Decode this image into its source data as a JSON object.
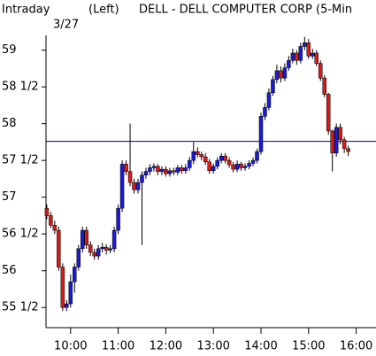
{
  "chart_data": {
    "type": "candlestick",
    "title": "DELL - DELL COMPUTER CORP  (5-Min",
    "period": "Intraday",
    "axis_side": "(Left)",
    "date": "3/27",
    "up_color": "#1a1ad8",
    "down_color": "#d81a1a",
    "reference_color": "#000080",
    "reference_line": 57.76,
    "ylim": [
      55.25,
      59.2
    ],
    "yticks": [
      {
        "value": 55.5,
        "label": "55 1/2"
      },
      56,
      {
        "value": 56.5,
        "label": "56 1/2"
      },
      57,
      {
        "value": 57.5,
        "label": "57 1/2"
      },
      58,
      {
        "value": 58.5,
        "label": "58 1/2"
      },
      59
    ],
    "xlim": [
      569,
      985
    ],
    "xticks": [
      {
        "value": 600,
        "label": "10:00"
      },
      {
        "value": 660,
        "label": "11:00"
      },
      {
        "value": 720,
        "label": "12:00"
      },
      {
        "value": 780,
        "label": "13:00"
      },
      {
        "value": 840,
        "label": "14:00"
      },
      {
        "value": 900,
        "label": "15:00"
      },
      {
        "value": 960,
        "label": "16:00"
      }
    ],
    "x": [
      570,
      575,
      580,
      585,
      590,
      595,
      600,
      605,
      610,
      615,
      620,
      625,
      630,
      635,
      640,
      645,
      650,
      655,
      660,
      665,
      670,
      675,
      680,
      685,
      690,
      695,
      700,
      705,
      710,
      715,
      720,
      725,
      730,
      735,
      740,
      745,
      750,
      755,
      760,
      765,
      770,
      775,
      780,
      785,
      790,
      795,
      800,
      805,
      810,
      815,
      820,
      825,
      830,
      835,
      840,
      845,
      850,
      855,
      860,
      865,
      870,
      875,
      880,
      885,
      890,
      895,
      900,
      905,
      910,
      915,
      920,
      925,
      930,
      935,
      940,
      945,
      950
    ],
    "open": [
      56.85,
      56.75,
      56.62,
      56.55,
      56.05,
      55.5,
      55.55,
      55.85,
      56.05,
      56.3,
      56.55,
      56.35,
      56.25,
      56.2,
      56.3,
      56.32,
      56.28,
      56.3,
      56.55,
      56.85,
      57.45,
      57.35,
      57.2,
      57.1,
      57.2,
      57.3,
      57.35,
      57.4,
      57.42,
      57.35,
      57.38,
      57.32,
      57.36,
      57.34,
      57.4,
      57.36,
      57.4,
      57.5,
      57.62,
      57.58,
      57.55,
      57.48,
      57.36,
      57.42,
      57.5,
      57.56,
      57.5,
      57.44,
      57.38,
      57.45,
      57.4,
      57.42,
      57.46,
      57.5,
      57.62,
      58.1,
      58.22,
      58.42,
      58.6,
      58.72,
      58.62,
      58.76,
      58.86,
      58.96,
      58.86,
      59.05,
      59.1,
      58.92,
      58.96,
      58.82,
      58.62,
      58.4,
      57.9,
      57.6,
      57.95,
      57.78,
      57.66
    ],
    "high": [
      56.9,
      56.8,
      56.68,
      56.6,
      56.1,
      55.6,
      55.95,
      56.1,
      56.35,
      56.6,
      56.6,
      56.4,
      56.3,
      56.35,
      56.38,
      56.36,
      56.35,
      56.6,
      56.9,
      57.5,
      57.5,
      58.0,
      57.25,
      57.25,
      57.35,
      57.4,
      57.45,
      57.46,
      57.45,
      57.42,
      57.42,
      57.4,
      57.4,
      57.44,
      57.44,
      57.45,
      57.55,
      57.75,
      57.68,
      57.62,
      57.6,
      57.52,
      57.46,
      57.54,
      57.6,
      57.6,
      57.54,
      57.48,
      57.5,
      57.48,
      57.46,
      57.5,
      57.54,
      57.66,
      58.15,
      58.28,
      58.48,
      58.65,
      58.8,
      58.78,
      58.82,
      58.92,
      59.02,
      59.0,
      59.1,
      59.18,
      59.15,
      59.02,
      59.0,
      58.86,
      58.66,
      58.42,
      57.92,
      58.0,
      58.0,
      57.82,
      57.7
    ],
    "low": [
      56.7,
      56.58,
      56.5,
      56.0,
      55.45,
      55.45,
      55.5,
      55.7,
      56.0,
      56.25,
      56.3,
      56.2,
      56.15,
      56.15,
      56.25,
      56.22,
      56.24,
      56.25,
      56.5,
      56.8,
      57.3,
      57.15,
      57.05,
      57.05,
      56.35,
      57.25,
      57.3,
      57.35,
      57.3,
      57.3,
      57.28,
      57.28,
      57.3,
      57.3,
      57.32,
      57.32,
      57.36,
      57.45,
      57.54,
      57.5,
      57.44,
      57.32,
      57.32,
      57.38,
      57.46,
      57.46,
      57.4,
      57.34,
      57.34,
      57.36,
      57.36,
      57.38,
      57.42,
      57.46,
      57.58,
      58.05,
      58.18,
      58.38,
      58.55,
      58.56,
      58.58,
      58.72,
      58.82,
      58.8,
      58.82,
      59.0,
      58.88,
      58.88,
      58.78,
      58.58,
      58.36,
      57.85,
      57.35,
      57.55,
      57.72,
      57.6,
      57.56
    ],
    "close": [
      56.75,
      56.62,
      56.55,
      56.05,
      55.5,
      55.55,
      55.85,
      56.05,
      56.3,
      56.55,
      56.35,
      56.25,
      56.2,
      56.3,
      56.32,
      56.28,
      56.3,
      56.55,
      56.85,
      57.45,
      57.35,
      57.2,
      57.1,
      57.2,
      57.3,
      57.35,
      57.4,
      57.42,
      57.35,
      57.38,
      57.32,
      57.36,
      57.34,
      57.4,
      57.36,
      57.4,
      57.5,
      57.62,
      57.58,
      57.55,
      57.48,
      57.36,
      57.42,
      57.5,
      57.56,
      57.5,
      57.44,
      57.38,
      57.45,
      57.4,
      57.42,
      57.46,
      57.5,
      57.62,
      58.1,
      58.22,
      58.42,
      58.6,
      58.72,
      58.62,
      58.76,
      58.86,
      58.96,
      58.86,
      59.05,
      59.1,
      58.92,
      58.96,
      58.82,
      58.62,
      58.4,
      57.9,
      57.6,
      57.95,
      57.78,
      57.66,
      57.62
    ]
  }
}
